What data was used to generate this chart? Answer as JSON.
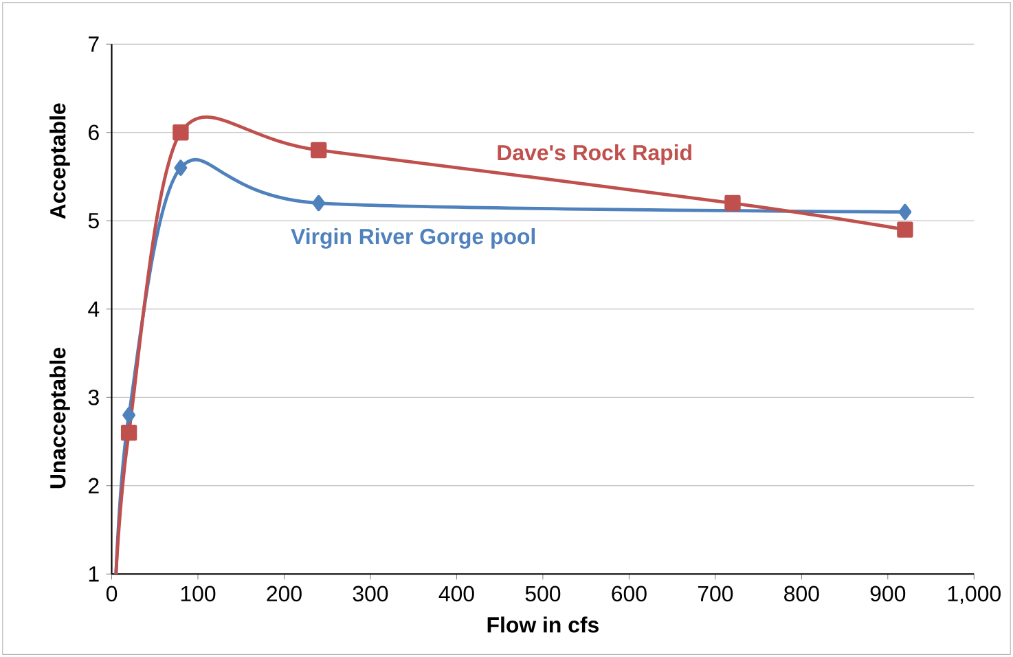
{
  "chart_data": {
    "type": "line",
    "xlabel": "Flow in cfs",
    "annotations": [
      "Acceptable",
      "Unacceptable"
    ],
    "xlim": [
      0,
      1000
    ],
    "xticks": [
      0,
      100,
      200,
      300,
      400,
      500,
      600,
      700,
      800,
      900,
      {
        "value": 1000,
        "label": "1,000"
      }
    ],
    "ylim": [
      1,
      7
    ],
    "yticks": [
      1,
      2,
      3,
      4,
      5,
      6,
      7
    ],
    "grid": "y",
    "series": [
      {
        "name": "Virgin River Gorge pool",
        "color": "#4f81bd",
        "marker": "diamond",
        "x": [
          5,
          20,
          80,
          240,
          920
        ],
        "values": [
          1,
          2.8,
          5.6,
          5.2,
          5.1
        ]
      },
      {
        "name": "Dave's Rock Rapid",
        "color": "#c0504d",
        "marker": "square",
        "x": [
          5,
          20,
          80,
          240,
          720,
          920
        ],
        "values": [
          1,
          2.6,
          6.0,
          5.8,
          5.2,
          4.9
        ]
      }
    ]
  }
}
